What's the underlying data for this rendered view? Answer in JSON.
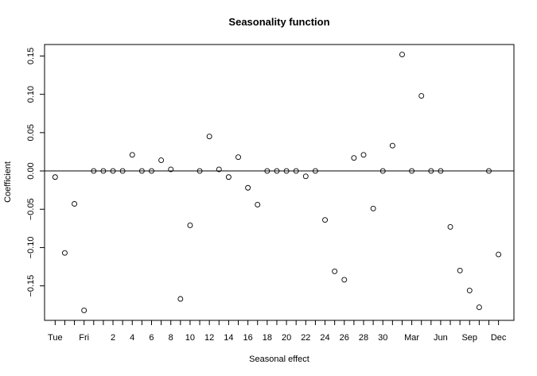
{
  "chart_data": {
    "type": "scatter",
    "title": "Seasonality function",
    "xlabel": "Seasonal effect",
    "ylabel": "Coefficient",
    "grid": false,
    "ylim": [
      -0.195,
      0.165
    ],
    "reference_line_y": 0,
    "x_tick_labels": [
      "Tue",
      "Fri",
      "2",
      "4",
      "6",
      "8",
      "10",
      "12",
      "14",
      "16",
      "18",
      "20",
      "22",
      "24",
      "26",
      "28",
      "30",
      "Mar",
      "Jun",
      "Sep",
      "Dec"
    ],
    "y_ticks": [
      0.15,
      0.1,
      0.05,
      0.0,
      -0.05,
      -0.1,
      -0.15
    ],
    "y_tick_labels": [
      "0.15",
      "0.10",
      "0.05",
      "0.00",
      "−0.05",
      "−0.10",
      "−0.15"
    ],
    "points": [
      {
        "x": 1,
        "y": -0.008
      },
      {
        "x": 2,
        "y": -0.107
      },
      {
        "x": 3,
        "y": -0.043
      },
      {
        "x": 4,
        "y": -0.182
      },
      {
        "x": 5,
        "y": 0.0
      },
      {
        "x": 6,
        "y": 0.0
      },
      {
        "x": 7,
        "y": 0.0
      },
      {
        "x": 8,
        "y": 0.0
      },
      {
        "x": 9,
        "y": 0.021
      },
      {
        "x": 10,
        "y": 0.0
      },
      {
        "x": 11,
        "y": 0.0
      },
      {
        "x": 12,
        "y": 0.014
      },
      {
        "x": 13,
        "y": 0.002
      },
      {
        "x": 14,
        "y": -0.167
      },
      {
        "x": 15,
        "y": -0.071
      },
      {
        "x": 16,
        "y": 0.0
      },
      {
        "x": 17,
        "y": 0.045
      },
      {
        "x": 18,
        "y": 0.002
      },
      {
        "x": 19,
        "y": -0.008
      },
      {
        "x": 20,
        "y": 0.018
      },
      {
        "x": 21,
        "y": -0.022
      },
      {
        "x": 22,
        "y": -0.044
      },
      {
        "x": 23,
        "y": 0.0
      },
      {
        "x": 24,
        "y": 0.0
      },
      {
        "x": 25,
        "y": 0.0
      },
      {
        "x": 26,
        "y": 0.0
      },
      {
        "x": 27,
        "y": -0.007
      },
      {
        "x": 28,
        "y": 0.0
      },
      {
        "x": 29,
        "y": -0.064
      },
      {
        "x": 30,
        "y": -0.131
      },
      {
        "x": 31,
        "y": -0.142
      },
      {
        "x": 32,
        "y": 0.017
      },
      {
        "x": 33,
        "y": 0.021
      },
      {
        "x": 34,
        "y": -0.049
      },
      {
        "x": 35,
        "y": 0.0
      },
      {
        "x": 36,
        "y": 0.033
      },
      {
        "x": 37,
        "y": 0.152
      },
      {
        "x": 38,
        "y": 0.0
      },
      {
        "x": 39,
        "y": 0.098
      },
      {
        "x": 40,
        "y": 0.0
      },
      {
        "x": 41,
        "y": 0.0
      },
      {
        "x": 42,
        "y": -0.073
      },
      {
        "x": 43,
        "y": -0.13
      },
      {
        "x": 44,
        "y": -0.156
      },
      {
        "x": 45,
        "y": -0.178
      },
      {
        "x": 46,
        "y": 0.0
      },
      {
        "x": 47,
        "y": -0.109
      }
    ],
    "x_tick_positions": [
      1,
      2,
      3,
      4,
      5,
      6,
      7,
      8,
      9,
      10,
      11,
      12,
      13,
      14,
      15,
      16,
      17,
      18,
      19,
      20,
      21,
      22,
      23,
      24,
      25,
      26,
      27,
      28,
      29,
      30,
      31,
      32,
      33,
      34,
      35,
      36,
      37,
      38,
      39,
      40,
      41,
      42,
      43,
      44,
      45,
      46,
      47
    ],
    "x_tick_label_positions": [
      1,
      4,
      7,
      9,
      11,
      13,
      15,
      17,
      19,
      21,
      23,
      25,
      27,
      29,
      31,
      33,
      35,
      38,
      41,
      44,
      47
    ],
    "xlim": [
      -0.1,
      48.6
    ]
  }
}
